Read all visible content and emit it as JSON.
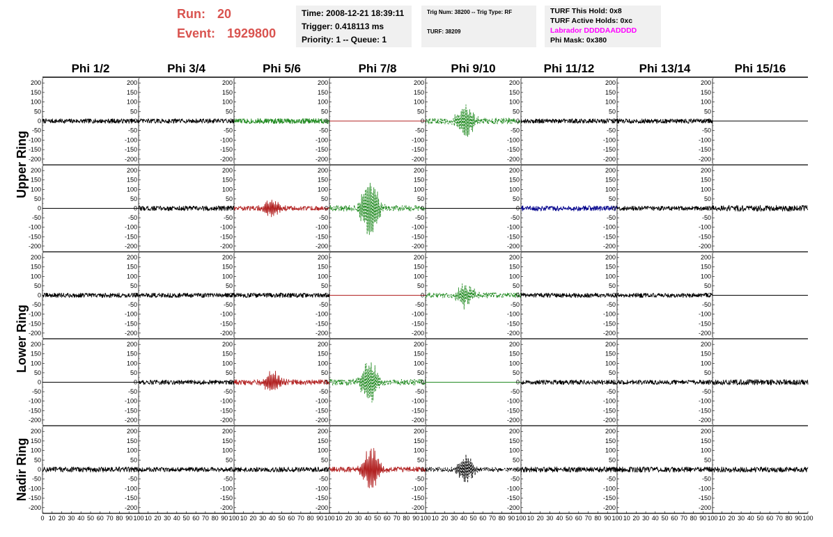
{
  "header": {
    "run_label": "Run:",
    "run_value": "20",
    "event_label": "Event:",
    "event_value": "1929800",
    "time_text": "Time: 2008-12-21 18:39:11",
    "trigger_text": "Trigger: 0.418113 ms",
    "priority_text": "Priority: 1 -- Queue: 1",
    "trig_num_text": "Trig Num: 38200 -- Trig Type: RF",
    "turf_text": "TURF: 38209",
    "turf_hold_text": "TURF This Hold: 0x8",
    "turf_active_text": "TURF Active Holds: 0xc",
    "labrador_text": "Labrador DDDDAADDDD",
    "phi_mask_text": "Phi Mask: 0x380",
    "labrador_color": "#ff00ff",
    "run_color": "#d9534f"
  },
  "chart_data": {
    "type": "line",
    "columns": [
      "Phi 1/2",
      "Phi 3/4",
      "Phi 5/6",
      "Phi 7/8",
      "Phi 9/10",
      "Phi 11/12",
      "Phi 13/14",
      "Phi 15/16"
    ],
    "ring_labels": [
      {
        "text": "Upper Ring",
        "rows": [
          0,
          1
        ]
      },
      {
        "text": "Lower Ring",
        "rows": [
          2,
          3
        ]
      },
      {
        "text": "Nadir Ring",
        "rows": [
          4
        ]
      }
    ],
    "ylim": [
      -230,
      230
    ],
    "yticks": [
      -200,
      -150,
      -100,
      -50,
      0,
      50,
      100,
      150,
      200
    ],
    "xlim": [
      0,
      100
    ],
    "xtick_labels": [
      "0",
      "10",
      "20",
      "30",
      "40",
      "50",
      "60",
      "70",
      "80",
      "90",
      "100"
    ],
    "colors": {
      "black": "#000000",
      "green": "#228b22",
      "red": "#b22222",
      "blue": "#00008b"
    },
    "panels": [
      [
        {
          "color": "black",
          "style": "solid",
          "amp": 12,
          "burst": 0
        },
        {
          "color": "black",
          "style": "solid",
          "amp": 12,
          "burst": 0
        },
        {
          "color": "green",
          "style": "solid",
          "amp": 14,
          "burst": 0
        },
        {
          "color": "red",
          "style": "solid",
          "amp": 0,
          "burst": 0
        },
        {
          "color": "green",
          "style": "dashed",
          "amp": 16,
          "burst": 95,
          "center": 42
        },
        {
          "color": "black",
          "style": "solid",
          "amp": 12,
          "burst": 0
        },
        {
          "color": "black",
          "style": "solid",
          "amp": 12,
          "burst": 0
        },
        {
          "color": "black",
          "style": "solid",
          "amp": 0,
          "burst": 0
        }
      ],
      [
        {
          "color": "black",
          "style": "solid",
          "amp": 0,
          "burst": 0
        },
        {
          "color": "black",
          "style": "solid",
          "amp": 13,
          "burst": 0
        },
        {
          "color": "red",
          "style": "solid",
          "amp": 12,
          "burst": 50,
          "center": 40
        },
        {
          "color": "green",
          "style": "dashed",
          "amp": 16,
          "burst": 180,
          "center": 42
        },
        {
          "color": "black",
          "style": "solid",
          "amp": 0,
          "burst": 0
        },
        {
          "color": "blue",
          "style": "solid",
          "amp": 14,
          "burst": 0
        },
        {
          "color": "black",
          "style": "solid",
          "amp": 12,
          "burst": 0
        },
        {
          "color": "black",
          "style": "solid",
          "amp": 16,
          "burst": 0
        }
      ],
      [
        {
          "color": "black",
          "style": "solid",
          "amp": 12,
          "burst": 0
        },
        {
          "color": "black",
          "style": "solid",
          "amp": 12,
          "burst": 0
        },
        {
          "color": "black",
          "style": "solid",
          "amp": 12,
          "burst": 0
        },
        {
          "color": "red",
          "style": "solid",
          "amp": 0,
          "burst": 0
        },
        {
          "color": "green",
          "style": "dashed",
          "amp": 14,
          "burst": 65,
          "center": 42
        },
        {
          "color": "black",
          "style": "solid",
          "amp": 12,
          "burst": 0
        },
        {
          "color": "black",
          "style": "solid",
          "amp": 12,
          "burst": 0
        },
        {
          "color": "black",
          "style": "solid",
          "amp": 0,
          "burst": 0
        }
      ],
      [
        {
          "color": "black",
          "style": "solid",
          "amp": 0,
          "burst": 0
        },
        {
          "color": "black",
          "style": "solid",
          "amp": 12,
          "burst": 0
        },
        {
          "color": "red",
          "style": "solid",
          "amp": 14,
          "burst": 60,
          "center": 40
        },
        {
          "color": "green",
          "style": "dashed",
          "amp": 16,
          "burst": 130,
          "center": 42
        },
        {
          "color": "green",
          "style": "solid",
          "amp": 0,
          "burst": 0
        },
        {
          "color": "black",
          "style": "solid",
          "amp": 12,
          "burst": 0
        },
        {
          "color": "black",
          "style": "solid",
          "amp": 12,
          "burst": 0
        },
        {
          "color": "black",
          "style": "solid",
          "amp": 14,
          "burst": 0
        }
      ],
      [
        {
          "color": "black",
          "style": "solid",
          "amp": 14,
          "burst": 0
        },
        {
          "color": "black",
          "style": "solid",
          "amp": 12,
          "burst": 0
        },
        {
          "color": "black",
          "style": "solid",
          "amp": 13,
          "burst": 0
        },
        {
          "color": "red",
          "style": "solid",
          "amp": 14,
          "burst": 120,
          "center": 43
        },
        {
          "color": "black",
          "style": "dashed",
          "amp": 12,
          "burst": 80,
          "center": 42
        },
        {
          "color": "black",
          "style": "solid",
          "amp": 14,
          "burst": 0
        },
        {
          "color": "black",
          "style": "solid",
          "amp": 14,
          "burst": 0
        },
        {
          "color": "black",
          "style": "solid",
          "amp": 14,
          "burst": 0
        }
      ]
    ]
  }
}
